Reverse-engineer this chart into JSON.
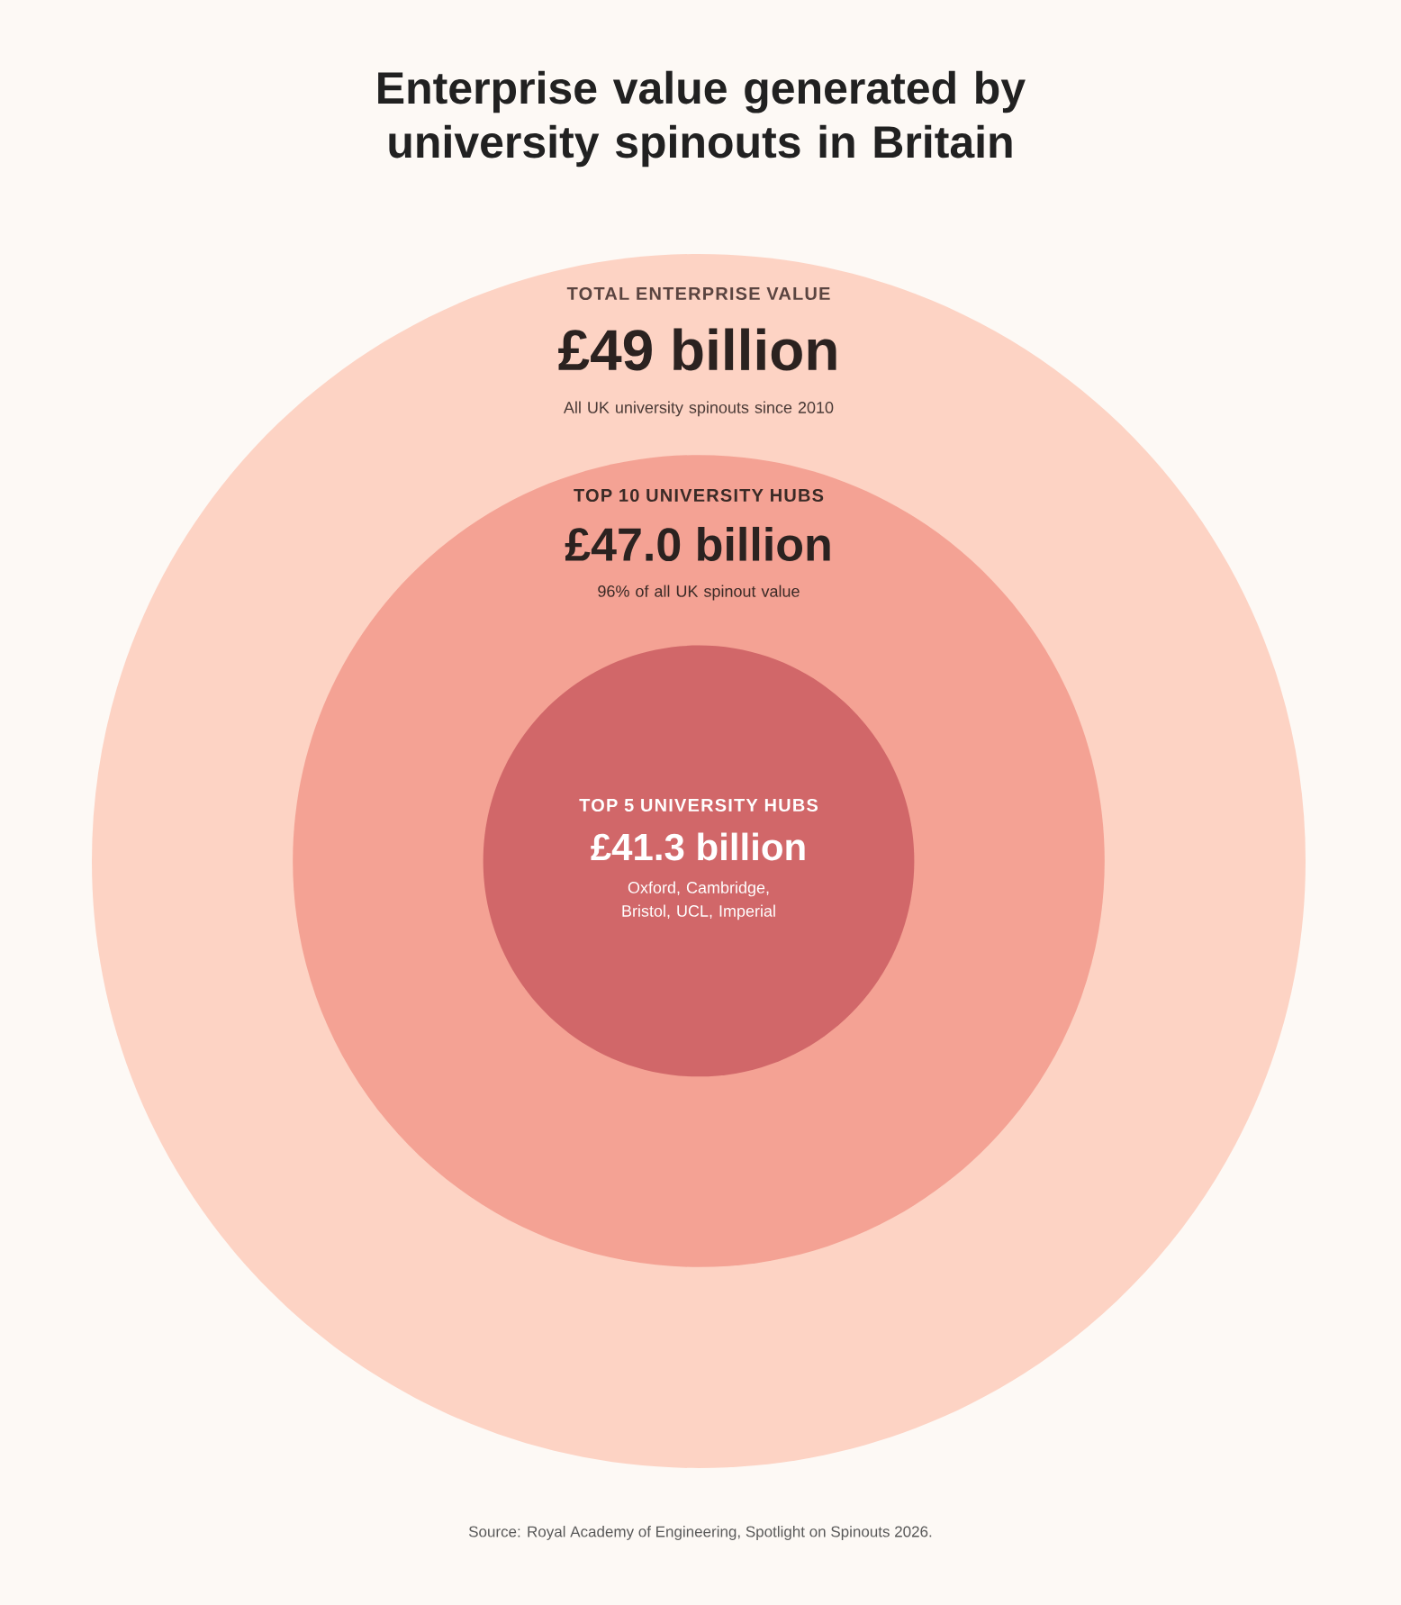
{
  "chart_data": {
    "type": "other",
    "title": "Enterprise value generated by university spinouts in Britain",
    "categories": [
      "TOTAL ENTERPRISE VALUE",
      "TOP 10 UNIVERSITY HUBS",
      "TOP 5 UNIVERSITY HUBS"
    ],
    "values": [
      49,
      47.0,
      41.3
    ],
    "value_labels": [
      "£49 billion",
      "£47.0 billion",
      "£41.3 billion"
    ],
    "colors": [
      "#fdd3c4",
      "#f4a294",
      "#d16769"
    ],
    "annotations": [
      "All UK university spinouts since 2010",
      "96% of all UK spinout value",
      "Oxford, Cambridge, Bristol, UCL, Imperial",
      "Source: Royal Academy of Engineering, Spotlight on Spinouts 2026."
    ]
  }
}
